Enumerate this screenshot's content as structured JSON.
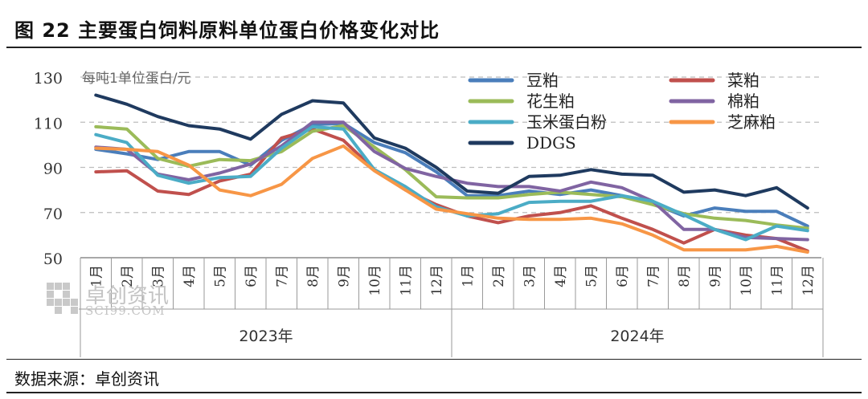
{
  "header": {
    "title": "图  22 主要蛋白饲料原料单位蛋白价格变化对比"
  },
  "footer": {
    "source": "数据来源：卓创资讯"
  },
  "watermark": {
    "name": "卓创资讯",
    "url": "SCI99.COM"
  },
  "chart_data": {
    "type": "line",
    "unit_label": "每吨1单位蛋白/元",
    "ylim": [
      50,
      130
    ],
    "yticks": [
      50,
      70,
      90,
      110,
      130
    ],
    "grid": true,
    "legend_position": "top-right",
    "categories": [
      "1月",
      "2月",
      "3月",
      "4月",
      "5月",
      "6月",
      "7月",
      "8月",
      "9月",
      "10月",
      "11月",
      "12月",
      "1月",
      "2月",
      "3月",
      "4月",
      "5月",
      "6月",
      "7月",
      "8月",
      "9月",
      "10月",
      "11月",
      "12月"
    ],
    "groups": [
      {
        "label": "2023年",
        "start": 0,
        "end": 11
      },
      {
        "label": "2024年",
        "start": 12,
        "end": 23
      }
    ],
    "series": [
      {
        "name": "豆粕",
        "color": "#4a7ebb",
        "values": [
          98,
          96,
          93.5,
          97,
          97,
          91,
          102,
          109,
          109.5,
          101,
          96.5,
          88,
          77.5,
          77.5,
          79.5,
          78,
          80,
          77.5,
          74,
          68.5,
          72,
          70.5,
          70.5,
          64
        ]
      },
      {
        "name": "菜粕",
        "color": "#c0504d",
        "values": [
          88,
          88.5,
          79.5,
          78,
          84,
          87,
          103,
          107,
          102,
          89,
          80,
          73.5,
          68.5,
          65.5,
          68.5,
          70,
          73,
          67.5,
          62.5,
          56.5,
          62.5,
          60,
          58.5,
          53
        ]
      },
      {
        "name": "花生粕",
        "color": "#9bbb59",
        "values": [
          108,
          107,
          94,
          90.5,
          93.5,
          93,
          97,
          106,
          108.5,
          99,
          89,
          77,
          76.5,
          76.5,
          78,
          79,
          78,
          77,
          73.5,
          69.5,
          67.5,
          66.5,
          64.5,
          63
        ]
      },
      {
        "name": "棉粕",
        "color": "#8064a2",
        "values": [
          99,
          98,
          87,
          84.5,
          87.5,
          91.5,
          99.5,
          110,
          110,
          97,
          89.5,
          86,
          83,
          81.5,
          81.5,
          79.5,
          83.5,
          81,
          75,
          62.5,
          62.5,
          59,
          58.5,
          58
        ]
      },
      {
        "name": "玉米蛋白粉",
        "color": "#4bacc6",
        "values": [
          104.5,
          101,
          86.5,
          83,
          85.5,
          86,
          98.5,
          108,
          107,
          89,
          81.5,
          72.5,
          68.5,
          69.5,
          74.5,
          75,
          75,
          77.5,
          75,
          69,
          62.5,
          58,
          64,
          62
        ]
      },
      {
        "name": "芝麻粕",
        "color": "#f79646",
        "values": [
          98.5,
          98,
          97,
          91,
          80,
          77.5,
          82.5,
          94,
          99.5,
          88.5,
          80,
          71.5,
          69.5,
          67.5,
          67,
          67,
          67.5,
          65,
          60,
          53.5,
          53.5,
          53.5,
          55,
          52.5
        ]
      },
      {
        "name": "DDGS",
        "color": "#1f3a5f",
        "values": [
          122,
          118,
          112.5,
          108.5,
          107,
          102.5,
          113.5,
          119.5,
          118.5,
          103,
          98.5,
          90,
          79.5,
          78.5,
          86,
          86.5,
          89,
          87,
          86.5,
          79,
          80,
          77.5,
          81,
          72
        ]
      }
    ]
  }
}
